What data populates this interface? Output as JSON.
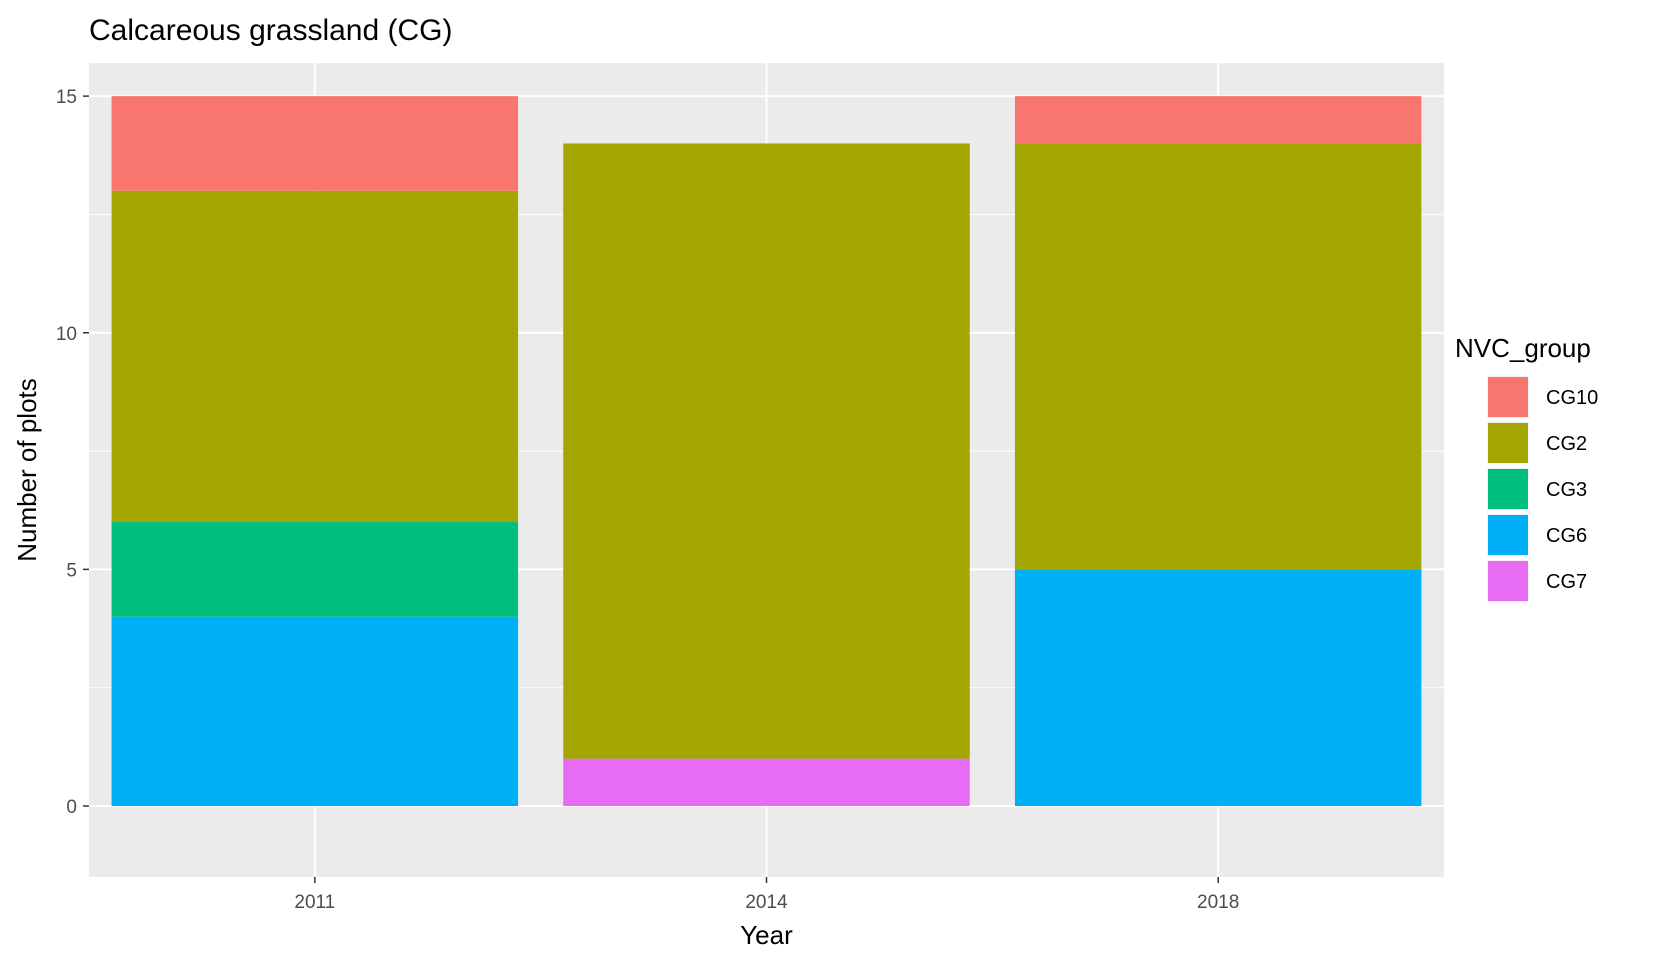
{
  "chart_data": {
    "type": "bar",
    "stacked": true,
    "title": "Calcareous grassland (CG)",
    "xlabel": "Year",
    "ylabel": "Number of plots",
    "categories": [
      "2011",
      "2014",
      "2018"
    ],
    "ylim": [
      -1.5,
      15.7
    ],
    "yticks": [
      0,
      5,
      10,
      15
    ],
    "grid": true,
    "legend_title": "NVC_group",
    "legend_position": "right",
    "stack_order_bottom_to_top": [
      "CG7",
      "CG6",
      "CG3",
      "CG2",
      "CG10"
    ],
    "series": [
      {
        "name": "CG10",
        "color": "#F8766D",
        "values": [
          2,
          0,
          1
        ]
      },
      {
        "name": "CG2",
        "color": "#A3A500",
        "values": [
          7,
          13,
          9
        ]
      },
      {
        "name": "CG3",
        "color": "#00BF7D",
        "values": [
          2,
          0,
          0
        ]
      },
      {
        "name": "CG6",
        "color": "#00B0F6",
        "values": [
          4,
          0,
          5
        ]
      },
      {
        "name": "CG7",
        "color": "#E76BF3",
        "values": [
          0,
          1,
          0
        ]
      }
    ],
    "panel_color": "#EBEBEB",
    "grid_color": "#FFFFFF"
  }
}
